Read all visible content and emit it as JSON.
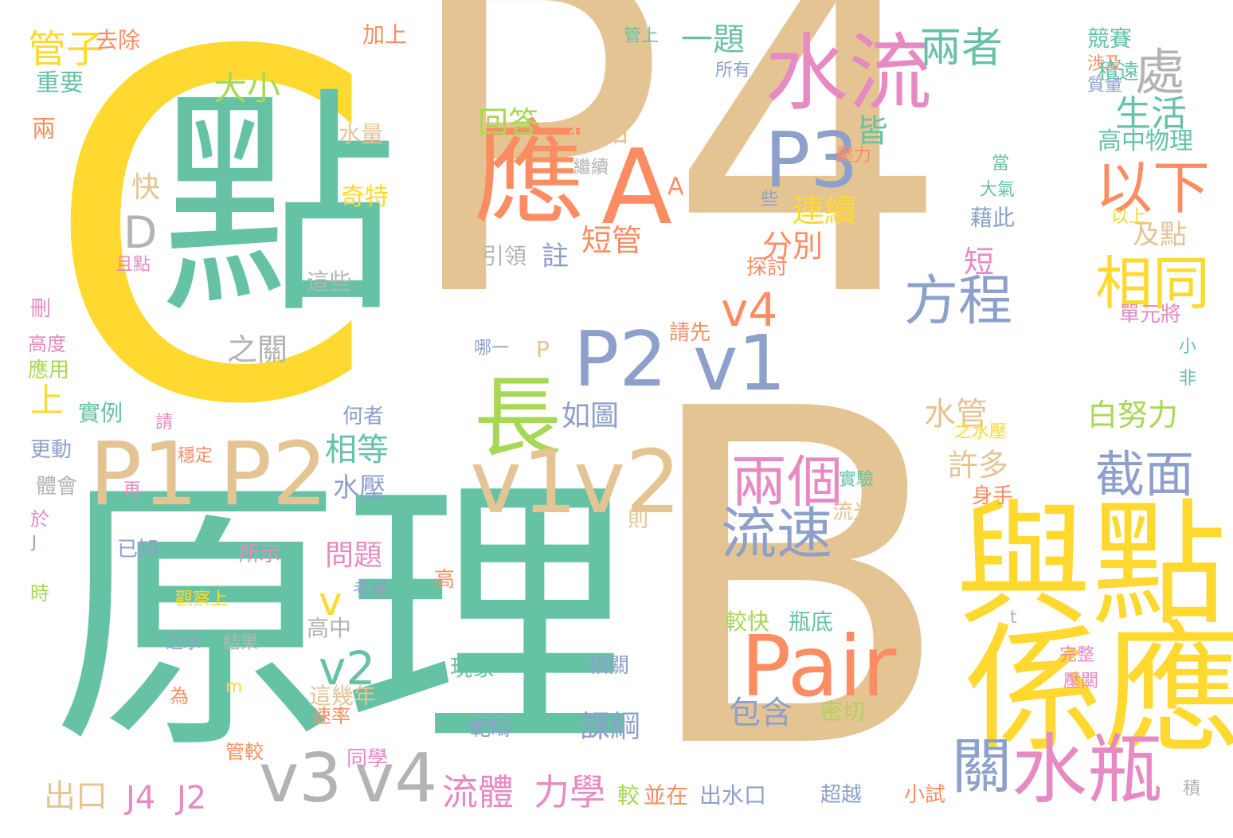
{
  "palette": {
    "teal": "#66c2a5",
    "orange": "#fc8d62",
    "blue": "#8da0cb",
    "pink": "#e78ac3",
    "green": "#a6d854",
    "yellow": "#ffd92f",
    "tan": "#e5c494",
    "gray": "#b3b3b3"
  },
  "words": [
    {
      "text": "P4",
      "color": "tan",
      "vertical": false
    },
    {
      "text": "B",
      "color": "tan",
      "vertical": false
    },
    {
      "text": "C",
      "color": "yellow",
      "vertical": false
    },
    {
      "text": "原理",
      "color": "teal",
      "vertical": false
    },
    {
      "text": "點",
      "color": "teal",
      "vertical": false
    },
    {
      "text": "與點",
      "color": "yellow",
      "vertical": false
    },
    {
      "text": "係應",
      "color": "yellow",
      "vertical": false
    },
    {
      "text": "水流",
      "color": "pink",
      "vertical": false
    },
    {
      "text": "應",
      "color": "orange",
      "vertical": false
    },
    {
      "text": "A",
      "color": "orange",
      "vertical": false
    },
    {
      "text": "P3",
      "color": "blue",
      "vertical": false
    },
    {
      "text": "P2",
      "color": "blue",
      "vertical": false
    },
    {
      "text": "v1",
      "color": "blue",
      "vertical": false
    },
    {
      "text": "長",
      "color": "green",
      "vertical": false
    },
    {
      "text": "P1",
      "color": "tan",
      "vertical": false
    },
    {
      "text": "P2",
      "color": "tan",
      "vertical": false
    },
    {
      "text": "v1",
      "color": "tan",
      "vertical": false
    },
    {
      "text": "v2",
      "color": "tan",
      "vertical": false
    },
    {
      "text": "v3",
      "color": "gray",
      "vertical": false
    },
    {
      "text": "v4",
      "color": "gray",
      "vertical": false
    },
    {
      "text": "Pair",
      "color": "orange",
      "vertical": false
    },
    {
      "text": "兩個",
      "color": "pink",
      "vertical": false
    },
    {
      "text": "流速",
      "color": "blue",
      "vertical": false
    },
    {
      "text": "水瓶",
      "color": "pink",
      "vertical": false
    },
    {
      "text": "關",
      "color": "blue",
      "vertical": false
    },
    {
      "text": "以下",
      "color": "orange",
      "vertical": false
    },
    {
      "text": "相同",
      "color": "yellow",
      "vertical": false
    },
    {
      "text": "方程",
      "color": "blue",
      "vertical": false
    },
    {
      "text": "截面",
      "color": "blue",
      "vertical": false
    },
    {
      "text": "處",
      "color": "gray",
      "vertical": false
    },
    {
      "text": "兩者",
      "color": "teal",
      "vertical": false
    },
    {
      "text": "v4",
      "color": "orange",
      "vertical": false
    },
    {
      "text": "v2",
      "color": "teal",
      "vertical": false
    },
    {
      "text": "v",
      "color": "yellow",
      "vertical": false
    },
    {
      "text": "大小",
      "color": "green",
      "vertical": false
    },
    {
      "text": "D",
      "color": "gray",
      "vertical": false
    },
    {
      "text": "上",
      "color": "yellow",
      "vertical": false
    },
    {
      "text": "管子",
      "color": "yellow",
      "vertical": false
    },
    {
      "text": "生活",
      "color": "teal",
      "vertical": false
    },
    {
      "text": "一題",
      "color": "teal",
      "vertical": false
    },
    {
      "text": "連續",
      "color": "yellow",
      "vertical": false
    },
    {
      "text": "分別",
      "color": "orange",
      "vertical": false
    },
    {
      "text": "皆",
      "color": "teal",
      "vertical": false
    },
    {
      "text": "短管",
      "color": "orange",
      "vertical": false
    },
    {
      "text": "在點",
      "color": "tan",
      "vertical": false
    },
    {
      "text": "回答",
      "color": "green",
      "vertical": false
    },
    {
      "text": "白努力",
      "color": "green",
      "vertical": false
    },
    {
      "text": "水管",
      "color": "tan",
      "vertical": false
    },
    {
      "text": "許多",
      "color": "tan",
      "vertical": false
    },
    {
      "text": "如圖",
      "color": "blue",
      "vertical": false
    },
    {
      "text": "相等",
      "color": "teal",
      "vertical": false
    },
    {
      "text": "水壓",
      "color": "blue",
      "vertical": false
    },
    {
      "text": "問題",
      "color": "pink",
      "vertical": false
    },
    {
      "text": "流體",
      "color": "pink",
      "vertical": false
    },
    {
      "text": "力學",
      "color": "pink",
      "vertical": false
    },
    {
      "text": "出口",
      "color": "tan",
      "vertical": false
    },
    {
      "text": "J4",
      "color": "pink",
      "vertical": false
    },
    {
      "text": "J2",
      "color": "pink",
      "vertical": false
    },
    {
      "text": "包含",
      "color": "blue",
      "vertical": false
    },
    {
      "text": "課綱",
      "color": "blue",
      "vertical": false
    },
    {
      "text": "之關",
      "color": "gray",
      "vertical": false
    },
    {
      "text": "及點",
      "color": "tan",
      "vertical": false
    },
    {
      "text": "短",
      "color": "pink",
      "vertical": false
    },
    {
      "text": "註",
      "color": "blue",
      "vertical": false
    },
    {
      "text": "快",
      "color": "tan",
      "vertical": false
    },
    {
      "text": "A",
      "color": "orange",
      "vertical": false
    },
    {
      "text": "去除",
      "color": "orange",
      "vertical": false
    },
    {
      "text": "加上",
      "color": "orange",
      "vertical": false
    },
    {
      "text": "管上",
      "color": "teal",
      "vertical": false
    },
    {
      "text": "所有",
      "color": "blue",
      "vertical": false
    },
    {
      "text": "競賽",
      "color": "teal",
      "vertical": false
    },
    {
      "text": "涉及",
      "color": "orange",
      "vertical": false
    },
    {
      "text": "質量",
      "color": "blue",
      "vertical": false
    },
    {
      "text": "積遠",
      "color": "teal",
      "vertical": false
    },
    {
      "text": "重要",
      "color": "teal",
      "vertical": false
    },
    {
      "text": "兩",
      "color": "orange",
      "vertical": false
    },
    {
      "text": "水量",
      "color": "tan",
      "vertical": false
    },
    {
      "text": "奇特",
      "color": "yellow",
      "vertical": false
    },
    {
      "text": "繼續",
      "color": "gray",
      "vertical": false
    },
    {
      "text": "壓力",
      "color": "orange",
      "vertical": false
    },
    {
      "text": "高中物理",
      "color": "teal",
      "vertical": false
    },
    {
      "text": "當",
      "color": "teal",
      "vertical": false
    },
    {
      "text": "大氣",
      "color": "teal",
      "vertical": false
    },
    {
      "text": "些",
      "color": "blue",
      "vertical": false
    },
    {
      "text": "藉此",
      "color": "blue",
      "vertical": false
    },
    {
      "text": "以上",
      "color": "yellow",
      "vertical": false
    },
    {
      "text": "且點",
      "color": "pink",
      "vertical": false
    },
    {
      "text": "引領",
      "color": "gray",
      "vertical": false
    },
    {
      "text": "這些",
      "color": "gray",
      "vertical": false
    },
    {
      "text": "探討",
      "color": "orange",
      "vertical": false
    },
    {
      "text": "單元將",
      "color": "pink",
      "vertical": false
    },
    {
      "text": "刪",
      "color": "pink",
      "vertical": false
    },
    {
      "text": "高度",
      "color": "pink",
      "vertical": false
    },
    {
      "text": "應用",
      "color": "green",
      "vertical": false
    },
    {
      "text": "請先",
      "color": "orange",
      "vertical": false
    },
    {
      "text": "哪一",
      "color": "blue",
      "vertical": false
    },
    {
      "text": "P",
      "color": "tan",
      "vertical": false
    },
    {
      "text": "小",
      "color": "teal",
      "vertical": false
    },
    {
      "text": "非",
      "color": "teal",
      "vertical": false
    },
    {
      "text": "實例",
      "color": "teal",
      "vertical": false
    },
    {
      "text": "請",
      "color": "pink",
      "vertical": false
    },
    {
      "text": "何者",
      "color": "blue",
      "vertical": false
    },
    {
      "text": "更動",
      "color": "blue",
      "vertical": false
    },
    {
      "text": "穩定",
      "color": "orange",
      "vertical": false
    },
    {
      "text": "之水壓",
      "color": "yellow",
      "vertical": false
    },
    {
      "text": "實驗",
      "color": "teal",
      "vertical": false
    },
    {
      "text": "體會",
      "color": "gray",
      "vertical": false
    },
    {
      "text": "再",
      "color": "pink",
      "vertical": false
    },
    {
      "text": "身手",
      "color": "orange",
      "vertical": false
    },
    {
      "text": "流光",
      "color": "tan",
      "vertical": false
    },
    {
      "text": "於",
      "color": "pink",
      "vertical": false
    },
    {
      "text": "J",
      "color": "blue",
      "vertical": false
    },
    {
      "text": "則",
      "color": "tan",
      "vertical": false
    },
    {
      "text": "已知",
      "color": "blue",
      "vertical": false
    },
    {
      "text": "所示",
      "color": "pink",
      "vertical": false
    },
    {
      "text": "時",
      "color": "green",
      "vertical": false
    },
    {
      "text": "觀察上",
      "color": "yellow",
      "vertical": false
    },
    {
      "text": "考慮",
      "color": "blue",
      "vertical": false
    },
    {
      "text": "高",
      "color": "orange",
      "vertical": false
    },
    {
      "text": "高中",
      "color": "gray",
      "vertical": false
    },
    {
      "text": "t",
      "color": "gray",
      "vertical": false
    },
    {
      "text": "較快",
      "color": "green",
      "vertical": false
    },
    {
      "text": "瓶底",
      "color": "teal",
      "vertical": false
    },
    {
      "text": "之水",
      "color": "blue",
      "vertical": false
    },
    {
      "text": "結果",
      "color": "gray",
      "vertical": false
    },
    {
      "text": "現象",
      "color": "teal",
      "vertical": false
    },
    {
      "text": "相關",
      "color": "blue",
      "vertical": false
    },
    {
      "text": "完整",
      "color": "pink",
      "vertical": false
    },
    {
      "text": "壓關",
      "color": "pink",
      "vertical": false
    },
    {
      "text": "為",
      "color": "orange",
      "vertical": false
    },
    {
      "text": "m",
      "color": "yellow",
      "vertical": false
    },
    {
      "text": "這幾年",
      "color": "tan",
      "vertical": false
    },
    {
      "text": "速率",
      "color": "orange",
      "vertical": false
    },
    {
      "text": "範疇",
      "color": "blue",
      "vertical": false
    },
    {
      "text": "密切",
      "color": "green",
      "vertical": false
    },
    {
      "text": "管較",
      "color": "orange",
      "vertical": false
    },
    {
      "text": "同學",
      "color": "pink",
      "vertical": false
    },
    {
      "text": "較",
      "color": "green",
      "vertical": false
    },
    {
      "text": "並在",
      "color": "orange",
      "vertical": false
    },
    {
      "text": "出水口",
      "color": "blue",
      "vertical": false
    },
    {
      "text": "超越",
      "color": "blue",
      "vertical": false
    },
    {
      "text": "小試",
      "color": "orange",
      "vertical": false
    },
    {
      "text": "積",
      "color": "gray",
      "vertical": false
    }
  ]
}
